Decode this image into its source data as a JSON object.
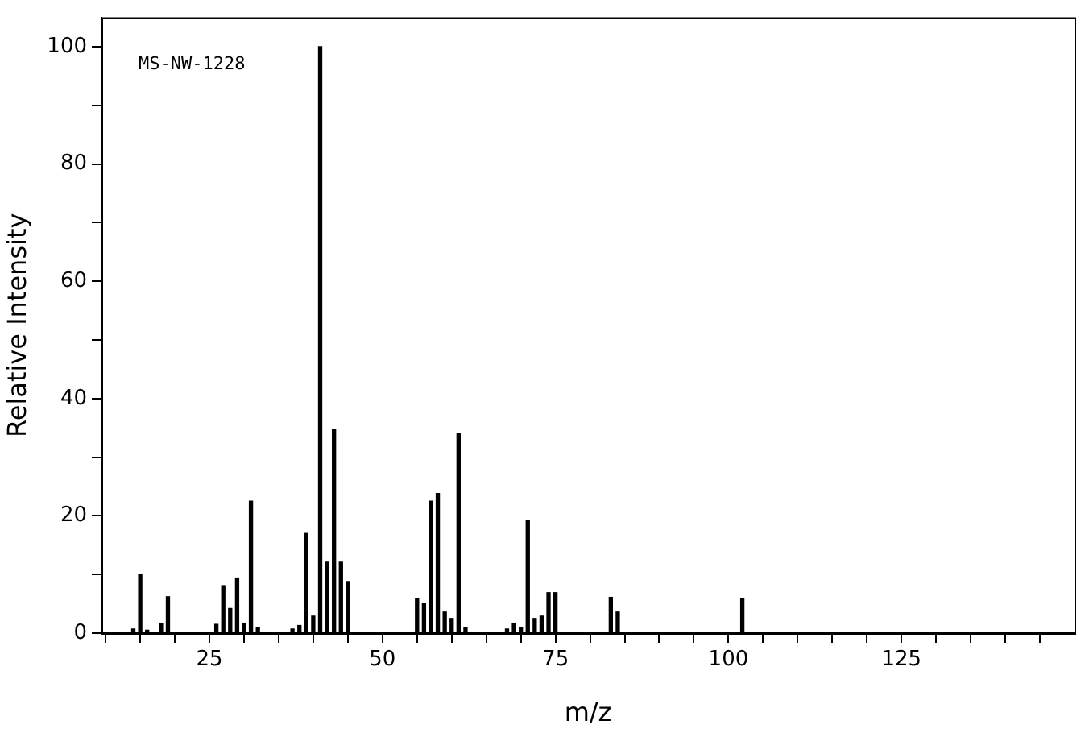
{
  "chart_data": {
    "type": "bar",
    "xlabel": "m/z",
    "ylabel": "Relative Intensity",
    "color": "#000000",
    "annotations": [
      "MS-NW-1228"
    ],
    "x": [
      14,
      15,
      16,
      18,
      19,
      26,
      27,
      28,
      29,
      30,
      31,
      32,
      37,
      38,
      39,
      40,
      41,
      42,
      43,
      44,
      45,
      55,
      56,
      57,
      58,
      59,
      60,
      61,
      62,
      68,
      69,
      70,
      71,
      72,
      73,
      74,
      75,
      83,
      84,
      102
    ],
    "values": [
      0.7,
      10,
      0.5,
      1.7,
      6.2,
      1.5,
      8.1,
      4.2,
      9.4,
      1.7,
      22.5,
      1,
      0.7,
      1.3,
      17,
      2.9,
      100,
      12.1,
      34.8,
      12.1,
      8.8,
      5.9,
      5,
      22.5,
      23.8,
      3.6,
      2.5,
      34,
      0.9,
      0.7,
      1.7,
      1,
      19.2,
      2.5,
      2.9,
      6.9,
      6.9,
      6.1,
      3.6,
      5.9
    ],
    "xlim": [
      9.4,
      150
    ],
    "xticks": [
      {
        "value": 10,
        "label": null
      },
      {
        "value": 15,
        "label": null
      },
      {
        "value": 20,
        "label": null
      },
      25,
      {
        "value": 30,
        "label": null
      },
      {
        "value": 35,
        "label": null
      },
      {
        "value": 40,
        "label": null
      },
      {
        "value": 45,
        "label": null
      },
      50,
      {
        "value": 55,
        "label": null
      },
      {
        "value": 60,
        "label": null
      },
      {
        "value": 65,
        "label": null
      },
      {
        "value": 70,
        "label": null
      },
      75,
      {
        "value": 80,
        "label": null
      },
      {
        "value": 85,
        "label": null
      },
      {
        "value": 90,
        "label": null
      },
      {
        "value": 95,
        "label": null
      },
      100,
      {
        "value": 105,
        "label": null
      },
      {
        "value": 110,
        "label": null
      },
      {
        "value": 115,
        "label": null
      },
      {
        "value": 120,
        "label": null
      },
      125,
      {
        "value": 130,
        "label": null
      },
      {
        "value": 135,
        "label": null
      },
      {
        "value": 140,
        "label": null
      },
      {
        "value": 145,
        "label": null
      }
    ],
    "ylim": [
      0,
      105
    ],
    "yticks": [
      0,
      {
        "value": 10,
        "label": null
      },
      20,
      {
        "value": 30,
        "label": null
      },
      40,
      {
        "value": 50,
        "label": null
      },
      60,
      {
        "value": 70,
        "label": null
      },
      80,
      {
        "value": 90,
        "label": null
      },
      100
    ],
    "grid": false,
    "legend": false
  }
}
